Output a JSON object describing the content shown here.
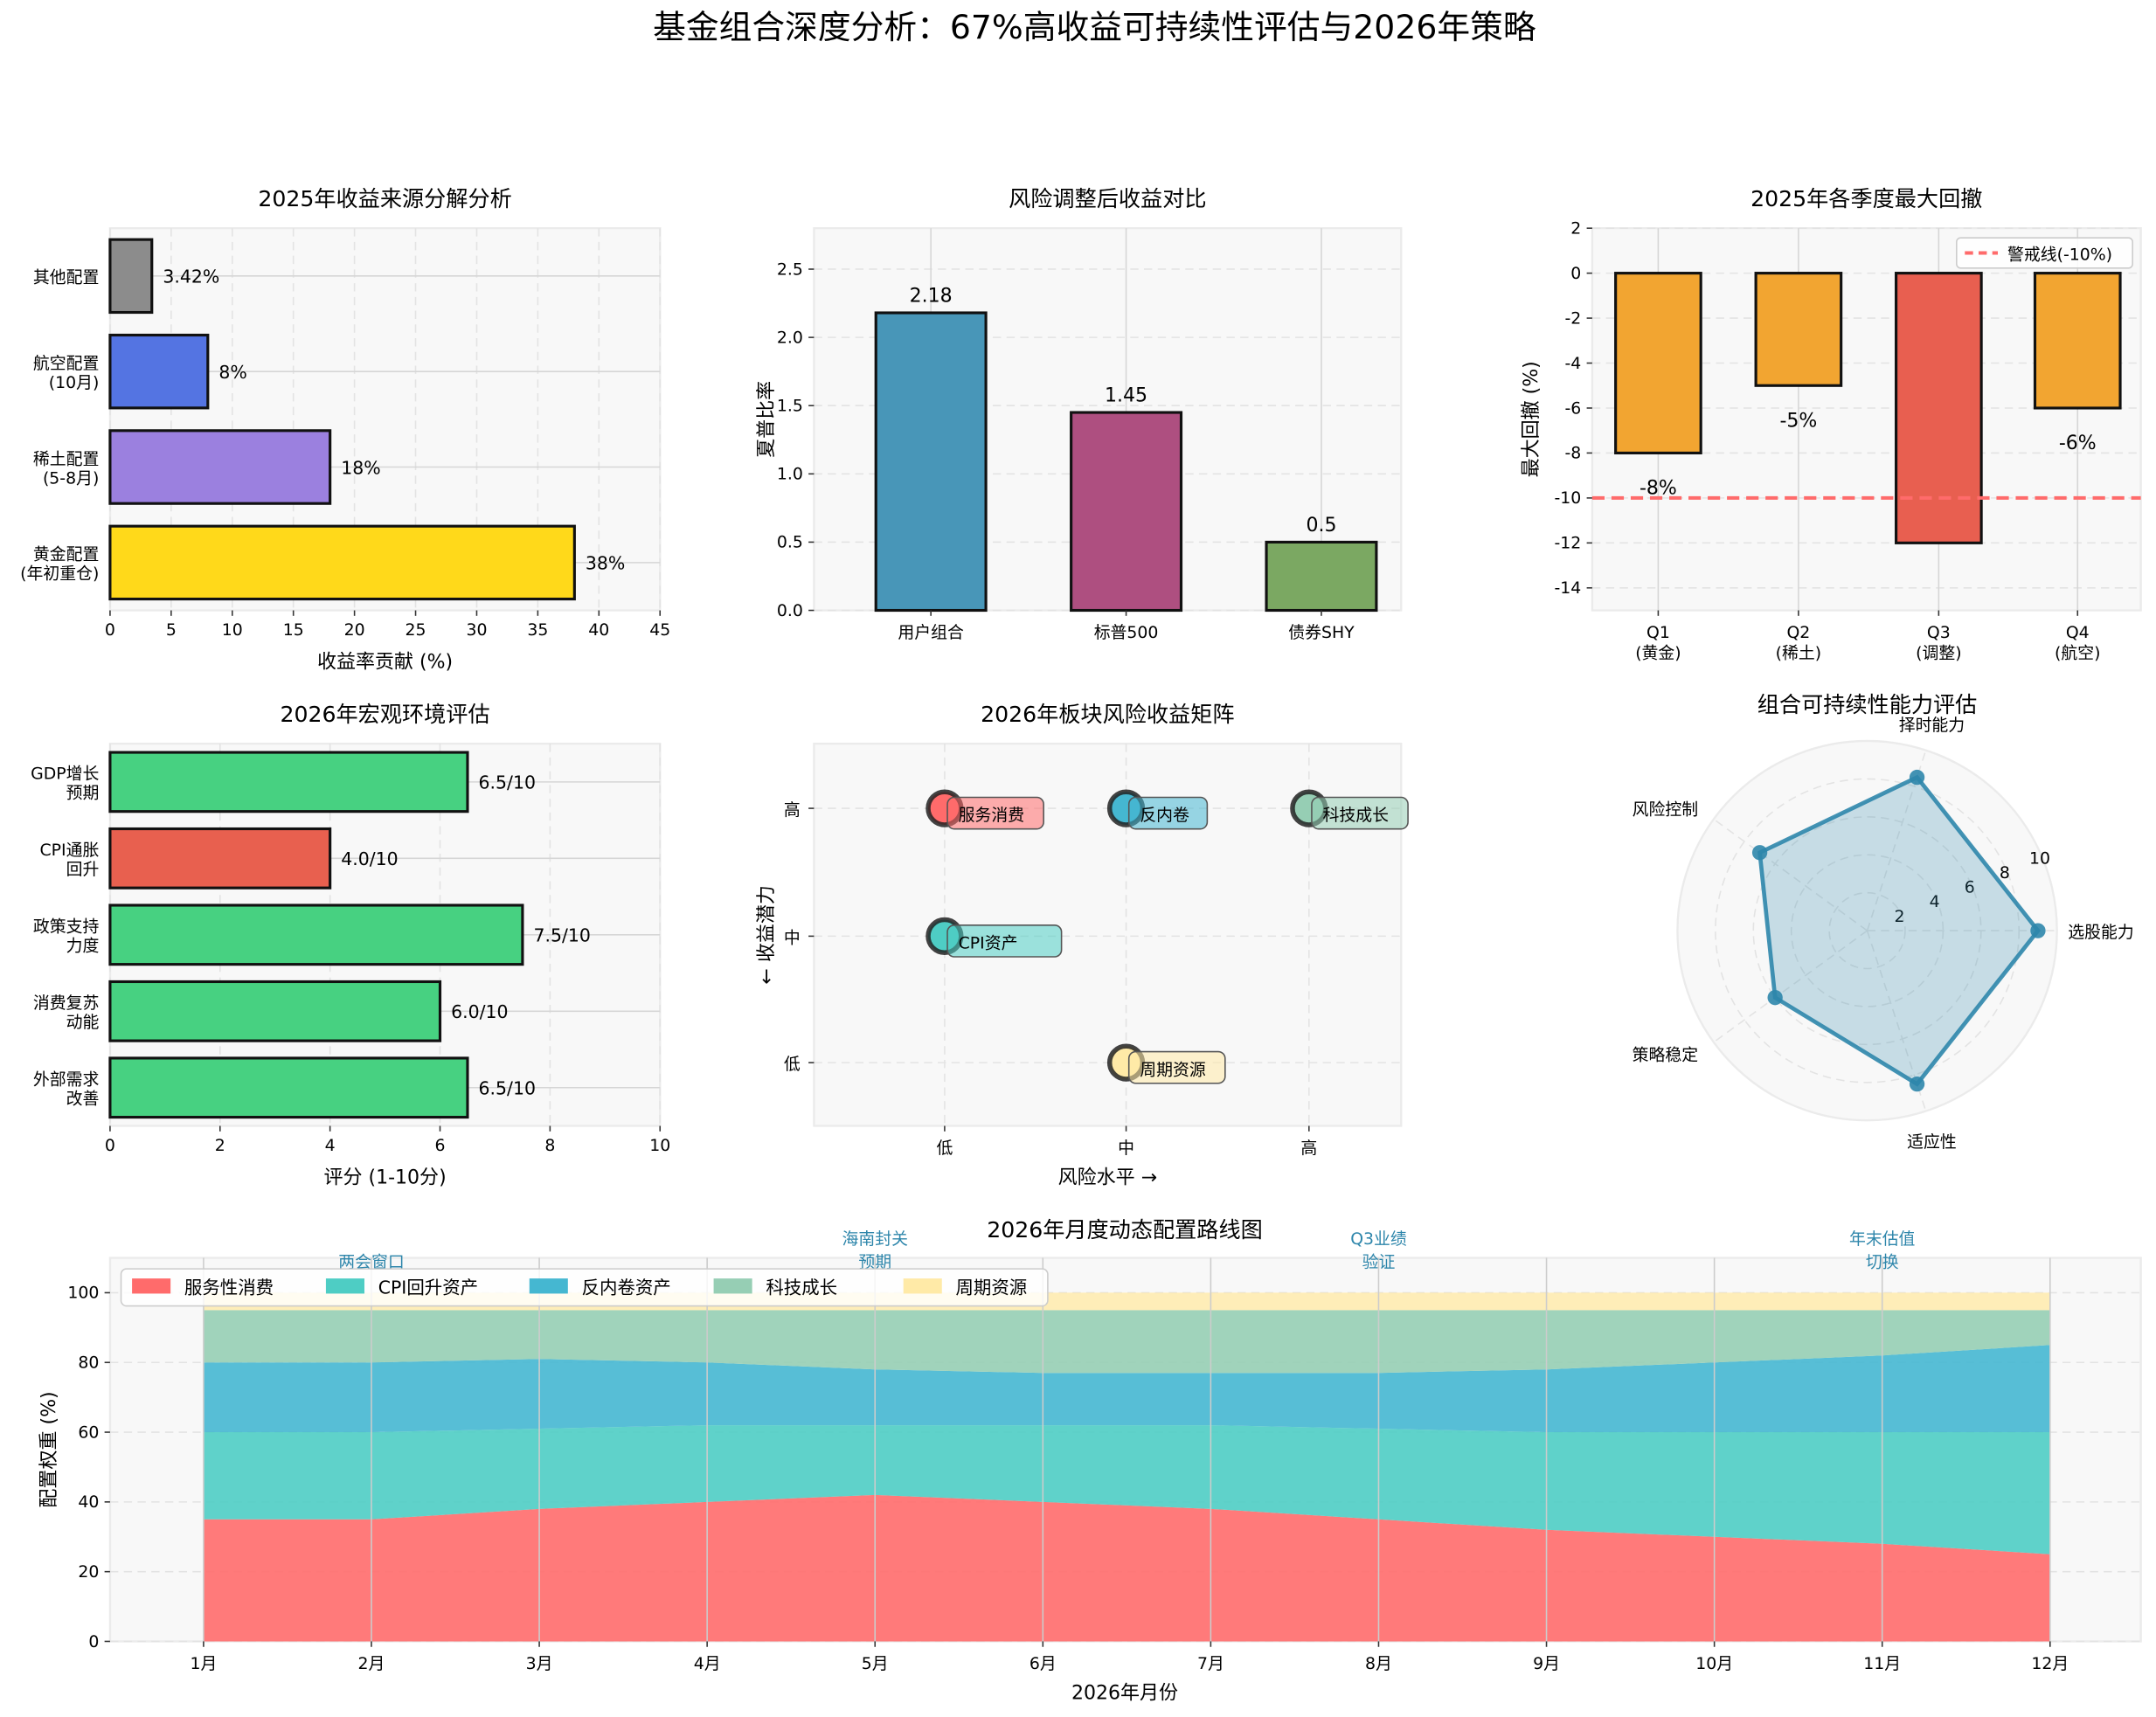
{
  "title": "基金组合深度分析：67%高收益可持续性评估与2026年策略",
  "chart_data": [
    {
      "id": "sources",
      "type": "bar",
      "orientation": "horizontal",
      "title": "2025年收益来源分解分析",
      "xlabel": "收益率贡献 (%)",
      "ylabel": "",
      "xlim": [
        0,
        45
      ],
      "xticks": [
        "0",
        "5",
        "10",
        "15",
        "20",
        "25",
        "30",
        "35",
        "40",
        "45"
      ],
      "categories": [
        [
          "黄金配置",
          "(年初重仓)"
        ],
        [
          "稀土配置",
          "(5-8月)"
        ],
        [
          "航空配置",
          "(10月)"
        ],
        [
          "其他配置"
        ]
      ],
      "values": [
        38,
        18,
        8,
        3.42
      ],
      "value_labels": [
        "38%",
        "18%",
        "8%",
        "3.42%"
      ],
      "colors": [
        "#FFD91A",
        "#9B80DF",
        "#5474E2",
        "#8C8C8C"
      ],
      "grid": true
    },
    {
      "id": "sharpe",
      "type": "bar",
      "title": "风险调整后收益对比",
      "xlabel": "",
      "ylabel": "夏普比率",
      "ylim": [
        0,
        2.8
      ],
      "yticks": [
        "0.0",
        "0.5",
        "1.0",
        "1.5",
        "2.0",
        "2.5"
      ],
      "categories": [
        "用户组合",
        "标普500",
        "债券SHY"
      ],
      "values": [
        2.18,
        1.45,
        0.5
      ],
      "value_labels": [
        "2.18",
        "1.45",
        "0.5"
      ],
      "colors": [
        "#4896B8",
        "#AE4F80",
        "#7BA862"
      ],
      "grid": true
    },
    {
      "id": "drawdown",
      "type": "bar",
      "title": "2025年各季度最大回撤",
      "xlabel": "",
      "ylabel": "最大回撤 (%)",
      "ylim": [
        -15,
        2
      ],
      "yticks": [
        "2",
        "0",
        "-2",
        "-4",
        "-6",
        "-8",
        "-10",
        "-12",
        "-14"
      ],
      "categories": [
        [
          "Q1",
          "(黄金)"
        ],
        [
          "Q2",
          "(稀土)"
        ],
        [
          "Q3",
          "(调整)"
        ],
        [
          "Q4",
          "(航空)"
        ]
      ],
      "values": [
        -8,
        -5,
        -12,
        -6
      ],
      "value_labels": [
        "-8%",
        "-5%",
        "",
        "-6%"
      ],
      "colors": [
        "#F2A531",
        "#F2A531",
        "#E85F50",
        "#F2A531"
      ],
      "threshold": {
        "value": -10,
        "label": "警戒线(-10%)",
        "color": "#FF6B6B"
      },
      "legend": "top-right",
      "grid": true
    },
    {
      "id": "macro",
      "type": "bar",
      "orientation": "horizontal",
      "title": "2026年宏观环境评估",
      "xlabel": "评分 (1-10分)",
      "ylabel": "",
      "xlim": [
        0,
        10
      ],
      "xticks": [
        "0",
        "2",
        "4",
        "6",
        "8",
        "10"
      ],
      "categories": [
        [
          "外部需求",
          "改善"
        ],
        [
          "消费复苏",
          "动能"
        ],
        [
          "政策支持",
          "力度"
        ],
        [
          "CPI通胀",
          "回升"
        ],
        [
          "GDP增长",
          "预期"
        ]
      ],
      "values": [
        6.5,
        6.0,
        7.5,
        4.0,
        6.5
      ],
      "value_labels": [
        "6.5/10",
        "6.0/10",
        "7.5/10",
        "4.0/10",
        "6.5/10"
      ],
      "colors": [
        "#47D181",
        "#47D181",
        "#47D181",
        "#E8604F",
        "#47D181"
      ],
      "grid": true
    },
    {
      "id": "matrix",
      "type": "scatter",
      "title": "2026年板块风险收益矩阵",
      "xlabel": "风险水平 →",
      "ylabel": "← 收益潜力",
      "xticks": [
        "低",
        "中",
        "高"
      ],
      "yticks": [
        "低",
        "中",
        "高"
      ],
      "points": [
        {
          "label": "服务消费",
          "x": "低",
          "y": "高",
          "color": "#FF6B6B"
        },
        {
          "label": "反内卷",
          "x": "中",
          "y": "高",
          "color": "#45B7D1"
        },
        {
          "label": "科技成长",
          "x": "高",
          "y": "高",
          "color": "#96CEB4"
        },
        {
          "label": "CPI资产",
          "x": "低",
          "y": "中",
          "color": "#4ECDC4"
        },
        {
          "label": "周期资源",
          "x": "中",
          "y": "低",
          "color": "#FFEAA7"
        }
      ],
      "grid": true
    },
    {
      "id": "radar",
      "type": "radar",
      "title": "组合可持续性能力评估",
      "axes": [
        "选股能力",
        "择时能力",
        "风险控制",
        "策略稳定",
        "适应性"
      ],
      "values": [
        9,
        8.5,
        7,
        6,
        8.5
      ],
      "rlim": [
        0,
        10
      ],
      "rticks": [
        "2",
        "4",
        "6",
        "8",
        "10"
      ],
      "color": "#2E86AB"
    },
    {
      "id": "allocation",
      "type": "area",
      "stacked": true,
      "title": "2026年月度动态配置路线图",
      "xlabel": "2026年月份",
      "ylabel": "配置权重 (%)",
      "ylim": [
        0,
        110
      ],
      "yticks": [
        "0",
        "20",
        "40",
        "60",
        "80",
        "100"
      ],
      "categories": [
        "1月",
        "2月",
        "3月",
        "4月",
        "5月",
        "6月",
        "7月",
        "8月",
        "9月",
        "10月",
        "11月",
        "12月"
      ],
      "series": [
        {
          "name": "服务性消费",
          "color": "#FF6B6B",
          "values": [
            35,
            35,
            38,
            40,
            42,
            40,
            38,
            35,
            32,
            30,
            28,
            25
          ]
        },
        {
          "name": "CPI回升资产",
          "color": "#4ECDC4",
          "values": [
            25,
            25,
            23,
            22,
            20,
            22,
            24,
            26,
            28,
            30,
            32,
            35
          ]
        },
        {
          "name": "反内卷资产",
          "color": "#45B7D1",
          "values": [
            20,
            20,
            20,
            18,
            16,
            15,
            15,
            16,
            18,
            20,
            22,
            25
          ]
        },
        {
          "name": "科技成长",
          "color": "#96CEB4",
          "values": [
            15,
            15,
            14,
            15,
            17,
            18,
            18,
            18,
            17,
            15,
            13,
            10
          ]
        },
        {
          "name": "周期资源",
          "color": "#FFEAA7",
          "values": [
            5,
            5,
            5,
            5,
            5,
            5,
            5,
            5,
            5,
            5,
            5,
            5
          ]
        }
      ],
      "annotations": [
        {
          "month": "2月",
          "text": [
            "两会窗口"
          ]
        },
        {
          "month": "5月",
          "text": [
            "海南封关",
            "预期"
          ]
        },
        {
          "month": "8月",
          "text": [
            "Q3业绩",
            "验证"
          ]
        },
        {
          "month": "11月",
          "text": [
            "年末估值",
            "切换"
          ]
        }
      ],
      "annotation_color": "#2E86AB",
      "legend": "top-left",
      "grid": true
    }
  ]
}
